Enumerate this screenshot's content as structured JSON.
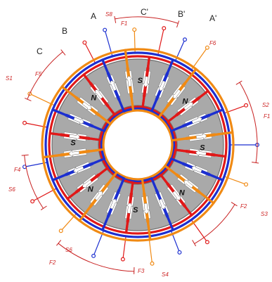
{
  "colors": {
    "phase_a": "#e01818",
    "phase_b": "#1c2fd0",
    "phase_c": "#f08a14",
    "core": "#a9a9a9",
    "core_edge": "#6e6e6e",
    "slot": "#ffffff",
    "arrow": "#ffffff",
    "bracket": "#c82020"
  },
  "phase_labels": {
    "a": "A",
    "b": "B",
    "c": "C",
    "a_prime": "A'",
    "b_prime": "B'",
    "c_prime": "C'"
  },
  "pole_labels": [
    "N",
    "S",
    "N",
    "S",
    "N",
    "S",
    "N",
    "S"
  ],
  "terminal_labels": {
    "s1": "S1",
    "s2": "S2",
    "s3": "S3",
    "s4": "S4",
    "s5": "S5",
    "s6": "S6",
    "f1": "F1",
    "f2": "F2",
    "f3": "F3",
    "f4": "F4",
    "f5": "F5",
    "f6": "F6",
    "f1_b": "F1",
    "f2_b": "F2",
    "s6_b": "S6",
    "s8": "S8"
  },
  "slot_count": 24,
  "phase_sequence": [
    "a",
    "b",
    "c"
  ]
}
